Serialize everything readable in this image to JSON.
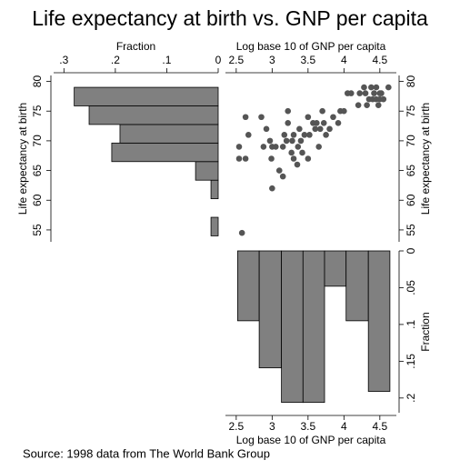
{
  "title": "Life expectancy at birth vs. GNP per capita",
  "source": "Source:  1998 data from The World Bank Group",
  "chart_data": [
    {
      "type": "histogram",
      "orientation": "horizontal",
      "color": "#808080",
      "xlabel": "Fraction",
      "xaxis": "top",
      "xreverse": true,
      "xlim": [
        0,
        0.32
      ],
      "xticks": [
        {
          "value": 0.3,
          "label": ".3"
        },
        {
          "value": 0.2,
          "label": ".2"
        },
        {
          "value": 0.1,
          "label": ".1"
        },
        0
      ],
      "ylabel": "Life expectancy at birth",
      "yaxis": "left",
      "ylim": [
        53,
        81
      ],
      "yticks": [
        55,
        60,
        65,
        70,
        75,
        80
      ],
      "bins": [
        54,
        57.125,
        60.25,
        63.375,
        66.5,
        69.625,
        72.75,
        75.875,
        79
      ],
      "values": [
        0.014,
        0,
        0.014,
        0.044,
        0.207,
        0.191,
        0.251,
        0.28
      ]
    },
    {
      "type": "scatter",
      "color": "#555555",
      "xlabel": "Log base 10 of GNP per capita",
      "xaxis": "top",
      "xlim": [
        2.35,
        4.73
      ],
      "xticks": [
        2.5,
        3,
        3.5,
        4,
        4.5
      ],
      "ylabel": "Life expectancy at birth",
      "yaxis": "right",
      "ylim": [
        53,
        81
      ],
      "yticks": [
        55,
        60,
        65,
        70,
        75,
        80
      ],
      "x": [
        2.58,
        2.54,
        2.54,
        2.63,
        2.67,
        2.63,
        2.85,
        2.88,
        2.92,
        2.97,
        3.0,
        2.99,
        3.0,
        3.05,
        3.1,
        3.15,
        3.15,
        3.17,
        3.2,
        3.22,
        3.22,
        3.27,
        3.28,
        3.3,
        3.3,
        3.35,
        3.36,
        3.38,
        3.4,
        3.42,
        3.45,
        3.5,
        3.5,
        3.52,
        3.57,
        3.6,
        3.62,
        3.65,
        3.67,
        3.7,
        3.72,
        3.75,
        3.8,
        3.85,
        3.92,
        3.95,
        4.0,
        4.05,
        4.1,
        4.2,
        4.22,
        4.28,
        4.3,
        4.35,
        4.38,
        4.4,
        4.42,
        4.45,
        4.45,
        4.5,
        4.5,
        4.52,
        4.48,
        4.55,
        4.62,
        4.32
      ],
      "y": [
        54.5,
        69,
        67,
        74,
        71,
        67,
        74,
        69,
        72,
        70,
        69,
        67,
        62,
        69,
        65,
        64,
        69,
        71,
        70,
        73,
        75,
        68,
        70,
        71,
        67,
        66,
        69,
        72,
        70,
        68,
        71,
        74,
        67,
        71,
        73,
        72,
        73,
        69,
        72,
        75,
        73,
        71,
        72,
        74,
        73,
        75,
        75,
        78,
        78,
        76,
        78,
        79,
        78,
        77,
        79,
        77,
        78,
        79,
        77,
        78,
        77,
        78,
        76,
        77,
        79,
        76
      ]
    },
    {
      "type": "histogram",
      "orientation": "vertical",
      "color": "#808080",
      "xlabel": "Log base 10 of GNP per capita",
      "xaxis": "bottom",
      "xlim": [
        2.35,
        4.73
      ],
      "xticks": [
        2.5,
        3,
        3.5,
        4,
        4.5
      ],
      "ylabel": "Fraction",
      "yaxis": "right",
      "yreverse": true,
      "ylim": [
        0,
        0.22
      ],
      "yticks": [
        0,
        {
          "value": 0.05,
          "label": ".05"
        },
        {
          "value": 0.1,
          "label": ".1"
        },
        {
          "value": 0.15,
          "label": ".15"
        },
        {
          "value": 0.2,
          "label": ".2"
        }
      ],
      "bins": [
        2.52,
        2.82,
        3.13,
        3.43,
        3.73,
        4.03,
        4.34,
        4.64
      ],
      "values": [
        0.095,
        0.159,
        0.206,
        0.206,
        0.048,
        0.095,
        0.191
      ]
    }
  ]
}
